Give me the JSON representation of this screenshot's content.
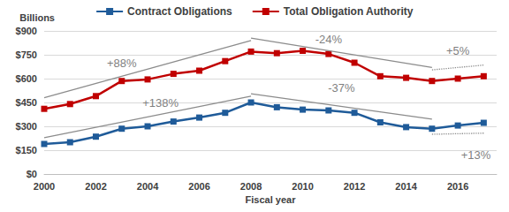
{
  "chart_data": {
    "type": "line",
    "legend": "top",
    "grid": true,
    "x_label": "Fiscal year",
    "y_label": "Billions",
    "x": [
      2000,
      2001,
      2002,
      2003,
      2004,
      2005,
      2006,
      2007,
      2008,
      2009,
      2010,
      2011,
      2012,
      2013,
      2014,
      2015,
      2016,
      2017
    ],
    "xlim": [
      2000,
      2017.5
    ],
    "xticks": [
      2000,
      2002,
      2004,
      2006,
      2008,
      2010,
      2012,
      2014,
      2016
    ],
    "ylim": [
      0,
      900
    ],
    "yticks": [
      {
        "value": 0,
        "label": "$0"
      },
      {
        "value": 150,
        "label": "$150"
      },
      {
        "value": 300,
        "label": "$300"
      },
      {
        "value": 450,
        "label": "$450"
      },
      {
        "value": 600,
        "label": "$600"
      },
      {
        "value": 750,
        "label": "$750"
      },
      {
        "value": 900,
        "label": "$900"
      }
    ],
    "series": [
      {
        "name": "Contract Obligations",
        "color": "#1f5b99",
        "marker": "square",
        "values": [
          189,
          200,
          235,
          285,
          300,
          330,
          355,
          385,
          450,
          420,
          405,
          400,
          385,
          325,
          295,
          285,
          305,
          322
        ],
        "annotations": [
          {
            "text": "+138%",
            "from": 2000,
            "to": 2008,
            "line_style": "solid"
          },
          {
            "text": "-37%",
            "from": 2008,
            "to": 2015,
            "line_style": "solid"
          },
          {
            "text": "+13%",
            "from": 2015,
            "to": 2017,
            "line_style": "dotted"
          }
        ]
      },
      {
        "name": "Total Obligation Authority",
        "color": "#c00000",
        "marker": "square",
        "values": [
          410,
          440,
          490,
          585,
          595,
          630,
          650,
          710,
          770,
          760,
          775,
          755,
          700,
          615,
          605,
          585,
          600,
          615
        ],
        "annotations": [
          {
            "text": "+88%",
            "from": 2000,
            "to": 2008,
            "line_style": "solid"
          },
          {
            "text": "-24%",
            "from": 2008,
            "to": 2015,
            "line_style": "solid"
          },
          {
            "text": "+5%",
            "from": 2015,
            "to": 2017,
            "line_style": "dotted"
          }
        ]
      }
    ]
  }
}
